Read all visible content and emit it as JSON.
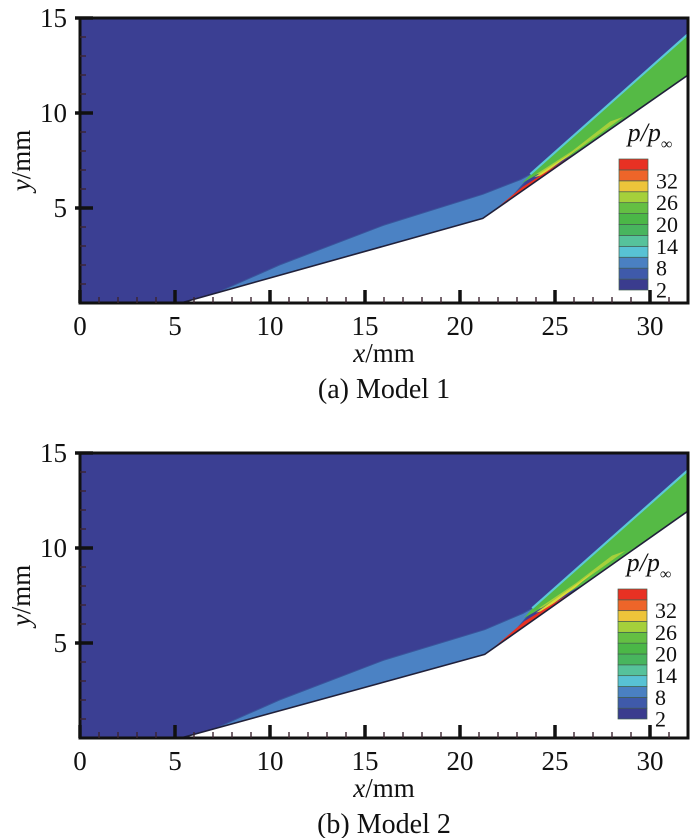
{
  "figure": {
    "kind": "CFD filled pressure contour comparison, two panels",
    "axis_color": "#111111",
    "background": "#ffffff"
  },
  "colorbar": {
    "title_main": "p/p",
    "title_sub": "∞",
    "title": "p/p∞",
    "labels": [
      "32",
      "26",
      "20",
      "14",
      "8",
      "2"
    ],
    "label_values": [
      32,
      26,
      20,
      14,
      8,
      2
    ],
    "min": 2,
    "max": 38,
    "step": 3,
    "band_colors_bottom_to_top": [
      "#3a3c8e",
      "#3f5aaa",
      "#4a80c2",
      "#58c2d4",
      "#56c29b",
      "#48b55e",
      "#4bb747",
      "#64bf43",
      "#a5d03b",
      "#edc43a",
      "#ee6529",
      "#e83123"
    ]
  },
  "chart_data": [
    {
      "type": "contour",
      "title": "(a) Model 1",
      "xlabel": "x/mm",
      "ylabel": "y/mm",
      "xlabel_var": "x",
      "xlabel_unit": "/mm",
      "ylabel_var": "y",
      "ylabel_unit": "/mm",
      "xlim": [
        0,
        32
      ],
      "ylim": [
        0,
        15
      ],
      "x_ticks": [
        0,
        5,
        10,
        15,
        20,
        25,
        30
      ],
      "x_tick_labels": [
        "0",
        "5",
        "10",
        "15",
        "20",
        "25",
        "30"
      ],
      "y_ticks": [
        5,
        10,
        15
      ],
      "y_tick_labels": [
        "5",
        "10",
        "15"
      ],
      "minor_tick_interval": 1,
      "legend_title": "p/p∞",
      "grid": false,
      "regions": [
        {
          "name": "freestream",
          "value_range": [
            2,
            5
          ],
          "fill": "#3b3f93",
          "points": [
            [
              0,
              0
            ],
            [
              32,
              0
            ],
            [
              32,
              15
            ],
            [
              0,
              15
            ]
          ]
        },
        {
          "name": "leading-shock-layer",
          "value_range": [
            8,
            11
          ],
          "fill": "#4b82c4",
          "stroke": "#3a569c",
          "stroke_width": 1,
          "points": [
            [
              5.3,
              -0.3
            ],
            [
              21.2,
              4.2
            ],
            [
              22.6,
              5.45
            ],
            [
              23.85,
              6.85
            ],
            [
              23.2,
              6.5
            ],
            [
              21.2,
              5.72
            ],
            [
              16.0,
              4.1
            ],
            [
              10.5,
              2.0
            ]
          ]
        },
        {
          "name": "ramp-shock-green-band",
          "value_range": [
            17,
            26
          ],
          "fill": "#55ba45",
          "points": [
            [
              23.25,
              6.3
            ],
            [
              26.0,
              7.85
            ],
            [
              32,
              11.95
            ],
            [
              32,
              14.15
            ],
            [
              23.7,
              6.75
            ]
          ]
        },
        {
          "name": "expansion-lime-streak",
          "value_range": [
            23,
            26
          ],
          "fill": "#a5d03b",
          "points": [
            [
              24.2,
              6.8
            ],
            [
              26.3,
              8.15
            ],
            [
              28.6,
              9.8
            ],
            [
              27.9,
              9.55
            ],
            [
              25.9,
              8.0
            ],
            [
              24.0,
              6.78
            ]
          ]
        },
        {
          "name": "transition-yellow-band",
          "value_range": [
            26,
            32
          ],
          "fill": "#ddd938",
          "points": [
            [
              23.9,
              6.62
            ],
            [
              26.0,
              7.98
            ],
            [
              26.75,
              8.55
            ],
            [
              25.8,
              7.8
            ],
            [
              24.3,
              6.72
            ]
          ]
        },
        {
          "name": "reattachment-high-pressure",
          "value_range": [
            35,
            38
          ],
          "fill": "#e83123",
          "points": [
            [
              21.2,
              4.32
            ],
            [
              26.05,
              7.9
            ],
            [
              25.35,
              7.42
            ],
            [
              23.3,
              6.12
            ],
            [
              21.6,
              4.72
            ]
          ]
        },
        {
          "name": "shock-cyan-edge",
          "value_range": [
            11,
            14
          ],
          "fill": "none",
          "stroke": "#5bc8d8",
          "stroke_width": 2.2,
          "points": [
            [
              23.7,
              6.78
            ],
            [
              32,
              14.15
            ]
          ]
        },
        {
          "name": "model-body",
          "value_range": null,
          "fill": "#ffffff",
          "points": [
            [
              5.3,
              0
            ],
            [
              21.2,
              4.45
            ],
            [
              32,
              12.0
            ],
            [
              32,
              -1
            ],
            [
              5.3,
              -1
            ]
          ]
        },
        {
          "name": "body-surface-outline",
          "value_range": null,
          "fill": "none",
          "stroke": "#20203a",
          "stroke_width": 1.6,
          "points": [
            [
              5.3,
              0
            ],
            [
              21.2,
              4.45
            ],
            [
              32,
              12.0
            ]
          ]
        }
      ]
    },
    {
      "type": "contour",
      "title": "(b) Model 2",
      "xlabel": "x/mm",
      "ylabel": "y/mm",
      "xlabel_var": "x",
      "xlabel_unit": "/mm",
      "ylabel_var": "y",
      "ylabel_unit": "/mm",
      "xlim": [
        0,
        32
      ],
      "ylim": [
        0,
        15
      ],
      "x_ticks": [
        0,
        5,
        10,
        15,
        20,
        25,
        30
      ],
      "x_tick_labels": [
        "0",
        "5",
        "10",
        "15",
        "20",
        "25",
        "30"
      ],
      "y_ticks": [
        5,
        10,
        15
      ],
      "y_tick_labels": [
        "5",
        "10",
        "15"
      ],
      "minor_tick_interval": 1,
      "legend_title": "p/p∞",
      "grid": false,
      "regions": [
        {
          "name": "freestream",
          "value_range": [
            2,
            5
          ],
          "fill": "#3b3f93",
          "points": [
            [
              0,
              0
            ],
            [
              32,
              0
            ],
            [
              32,
              15
            ],
            [
              0,
              15
            ]
          ]
        },
        {
          "name": "leading-shock-layer",
          "value_range": [
            8,
            11
          ],
          "fill": "#4b82c4",
          "stroke": "#3a569c",
          "stroke_width": 1,
          "points": [
            [
              5.3,
              -0.3
            ],
            [
              21.3,
              4.15
            ],
            [
              22.7,
              5.4
            ],
            [
              23.95,
              6.9
            ],
            [
              23.3,
              6.55
            ],
            [
              21.3,
              5.7
            ],
            [
              16.0,
              4.1
            ],
            [
              10.5,
              2.0
            ]
          ]
        },
        {
          "name": "ramp-shock-green-band",
          "value_range": [
            17,
            26
          ],
          "fill": "#55ba45",
          "points": [
            [
              23.35,
              6.3
            ],
            [
              26.5,
              8.1
            ],
            [
              32,
              11.9
            ],
            [
              32,
              14.1
            ],
            [
              23.8,
              6.8
            ]
          ]
        },
        {
          "name": "expansion-lime-streak",
          "value_range": [
            23,
            26
          ],
          "fill": "#a5d03b",
          "points": [
            [
              24.3,
              6.85
            ],
            [
              26.6,
              8.35
            ],
            [
              28.7,
              9.85
            ],
            [
              28.0,
              9.6
            ],
            [
              26.1,
              8.15
            ],
            [
              24.1,
              6.8
            ]
          ]
        },
        {
          "name": "transition-yellow-band",
          "value_range": [
            26,
            32
          ],
          "fill": "#ddd938",
          "points": [
            [
              24.0,
              6.6
            ],
            [
              26.35,
              8.25
            ],
            [
              27.15,
              8.85
            ],
            [
              26.1,
              7.95
            ],
            [
              24.4,
              6.7
            ]
          ]
        },
        {
          "name": "reattachment-high-pressure",
          "value_range": [
            35,
            38
          ],
          "fill": "#e83123",
          "points": [
            [
              21.3,
              4.28
            ],
            [
              26.45,
              8.0
            ],
            [
              25.6,
              7.5
            ],
            [
              23.4,
              6.15
            ],
            [
              21.7,
              4.7
            ]
          ]
        },
        {
          "name": "shock-cyan-edge",
          "value_range": [
            11,
            14
          ],
          "fill": "none",
          "stroke": "#5bc8d8",
          "stroke_width": 2.2,
          "points": [
            [
              23.8,
              6.83
            ],
            [
              32,
              14.1
            ]
          ]
        },
        {
          "name": "model-body",
          "value_range": null,
          "fill": "#ffffff",
          "points": [
            [
              5.3,
              0
            ],
            [
              21.3,
              4.4
            ],
            [
              32,
              11.95
            ],
            [
              32,
              -1
            ],
            [
              5.3,
              -1
            ]
          ]
        },
        {
          "name": "body-surface-outline",
          "value_range": null,
          "fill": "none",
          "stroke": "#20203a",
          "stroke_width": 1.6,
          "points": [
            [
              5.3,
              0
            ],
            [
              21.3,
              4.4
            ],
            [
              32,
              11.95
            ]
          ]
        }
      ]
    }
  ]
}
